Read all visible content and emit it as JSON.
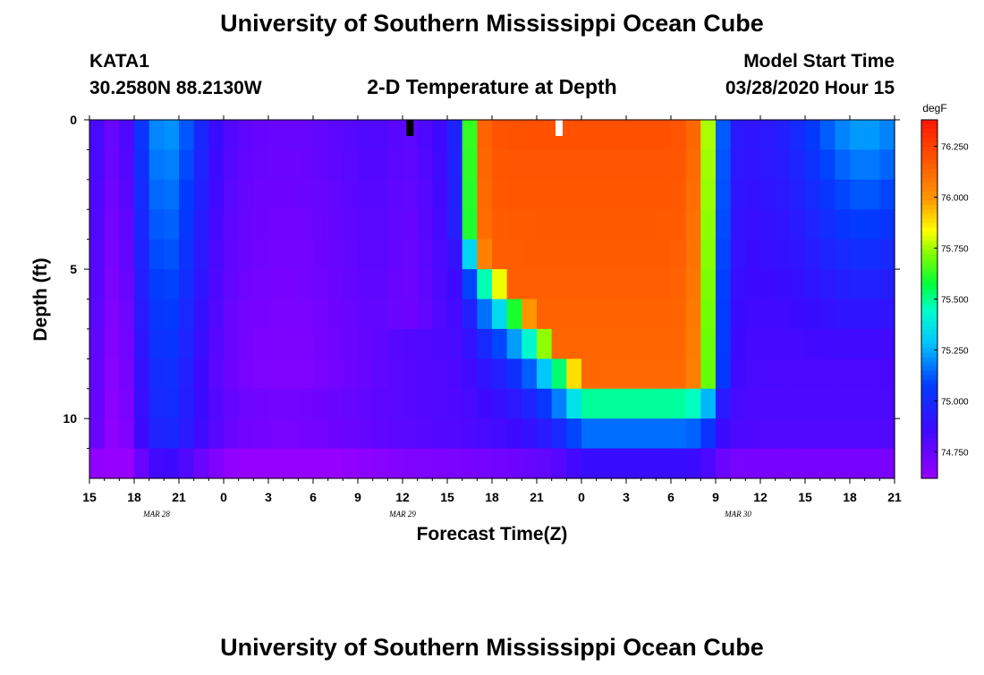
{
  "page": {
    "title_top": "University of Southern Mississippi Ocean Cube",
    "title_bottom": "University of Southern Mississippi Ocean Cube",
    "station_id": "KATA1",
    "station_coords": "30.2580N 88.2130W",
    "plot_title": "2-D Temperature at Depth",
    "model_label": "Model Start Time",
    "model_time": "03/28/2020 Hour 15"
  },
  "chart_data": {
    "type": "heatmap",
    "title": "2-D Temperature at Depth",
    "xlabel": "Forecast Time(Z)",
    "ylabel": "Depth (ft)",
    "x_range_hours": [
      0,
      54
    ],
    "x_ticks": [
      "15",
      "18",
      "21",
      "0",
      "3",
      "6",
      "9",
      "12",
      "15",
      "18",
      "21",
      "0",
      "3",
      "6",
      "9",
      "12",
      "15",
      "18",
      "21"
    ],
    "date_labels": [
      {
        "text": "MAR 28",
        "hour": 4.5
      },
      {
        "text": "MAR 29",
        "hour": 21
      },
      {
        "text": "MAR 30",
        "hour": 43.5
      }
    ],
    "y_range_ft": [
      0,
      12
    ],
    "y_ticks": [
      "0",
      "5",
      "10"
    ],
    "y_tick_values": [
      0,
      5,
      10
    ],
    "colorbar": {
      "unit": "degF",
      "min": 74.62,
      "max": 76.38,
      "ticks": [
        "74.750",
        "75.000",
        "75.250",
        "75.500",
        "75.750",
        "76.000",
        "76.250"
      ],
      "tick_values": [
        74.75,
        75.0,
        75.25,
        75.5,
        75.75,
        76.0,
        76.25
      ]
    },
    "grid": {
      "n_time": 54,
      "depths_ft": [
        0.5,
        1.5,
        2.5,
        3.5,
        4.5,
        5.5,
        6.5,
        7.5,
        8.5,
        9.5,
        10.5,
        11.5
      ],
      "surface_markers": [
        {
          "hour": 21.5,
          "color": "#000000"
        },
        {
          "hour": 31.5,
          "color": "#ffffff"
        }
      ]
    }
  }
}
